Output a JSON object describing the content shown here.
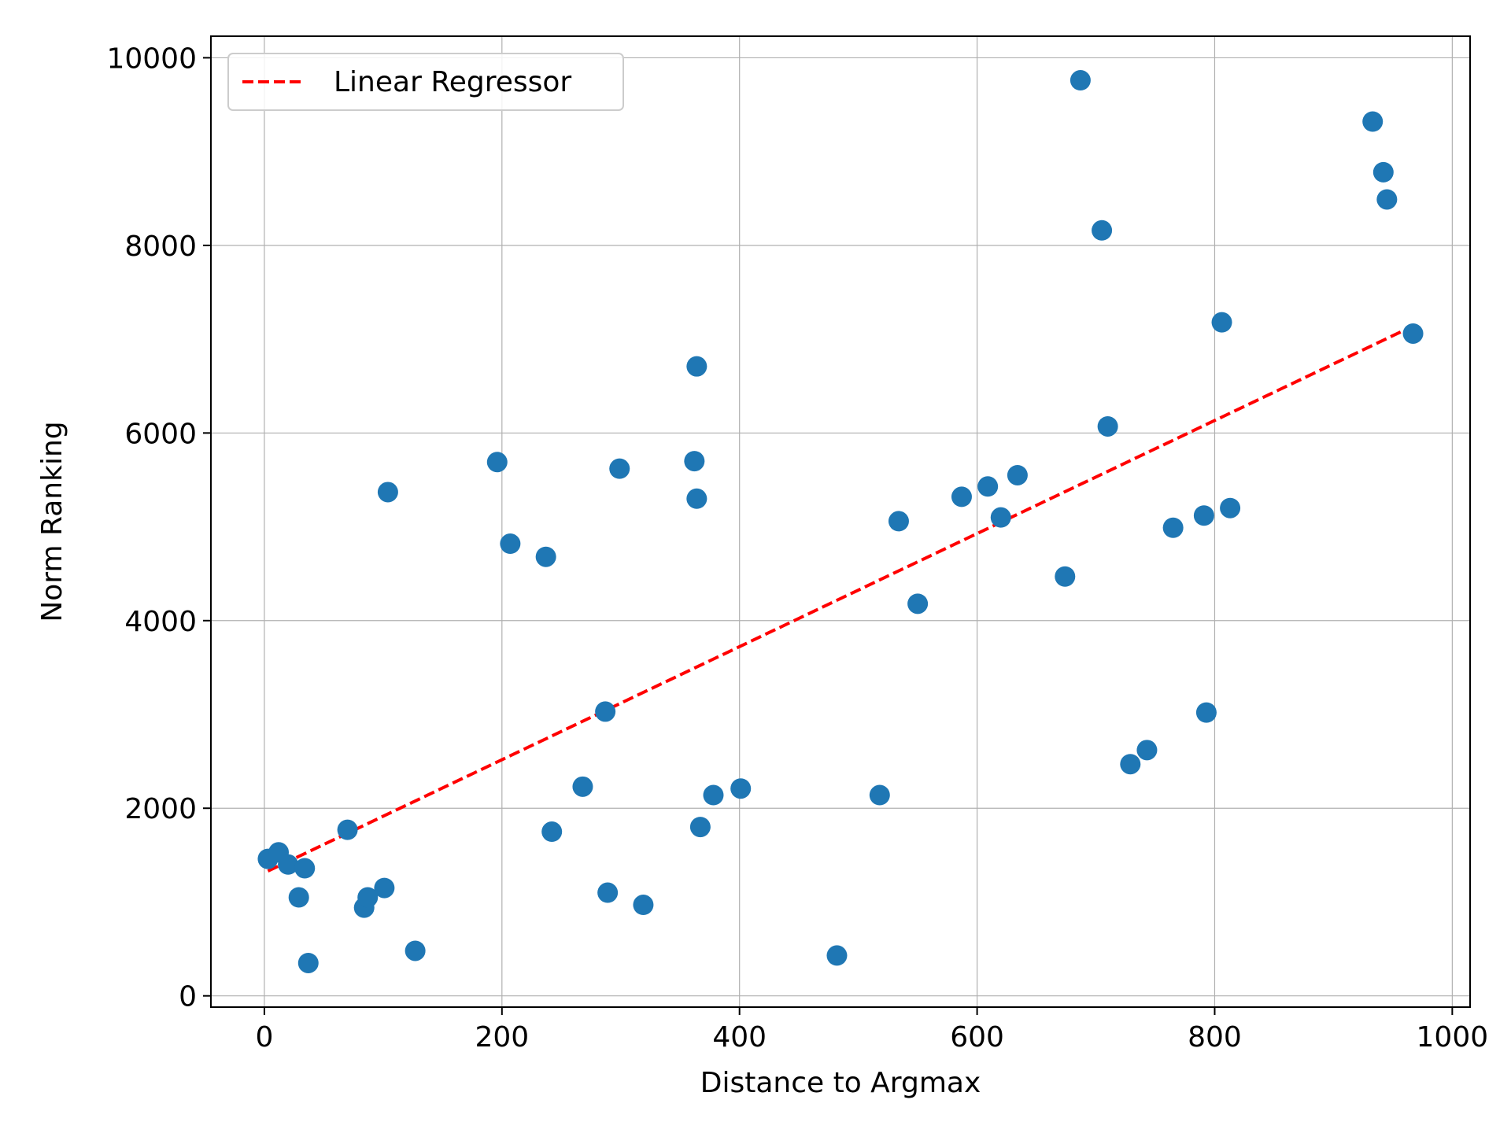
{
  "chart_data": {
    "type": "scatter",
    "title": "",
    "xlabel": "Distance to Argmax",
    "ylabel": "Norm Ranking",
    "xlim": [
      -45,
      1015
    ],
    "ylim": [
      -120,
      10230
    ],
    "xticks": [
      0,
      200,
      400,
      600,
      800,
      1000
    ],
    "yticks": [
      0,
      2000,
      4000,
      6000,
      8000,
      10000
    ],
    "grid": true,
    "legend": {
      "position": "top-left",
      "entries": [
        "Linear Regressor"
      ]
    },
    "colors": {
      "points": "#1f77b4",
      "regression": "#ff0000",
      "grid": "#b0b0b0"
    },
    "points": [
      [
        3,
        1460
      ],
      [
        12,
        1530
      ],
      [
        20,
        1400
      ],
      [
        29,
        1050
      ],
      [
        34,
        1360
      ],
      [
        37,
        350
      ],
      [
        70,
        1770
      ],
      [
        84,
        940
      ],
      [
        87,
        1050
      ],
      [
        101,
        1150
      ],
      [
        104,
        5370
      ],
      [
        127,
        480
      ],
      [
        196,
        5690
      ],
      [
        207,
        4820
      ],
      [
        237,
        4680
      ],
      [
        242,
        1750
      ],
      [
        268,
        2230
      ],
      [
        287,
        3030
      ],
      [
        289,
        1100
      ],
      [
        299,
        5620
      ],
      [
        319,
        970
      ],
      [
        362,
        5700
      ],
      [
        364,
        6710
      ],
      [
        364,
        5300
      ],
      [
        367,
        1800
      ],
      [
        378,
        2140
      ],
      [
        401,
        2210
      ],
      [
        482,
        430
      ],
      [
        518,
        2140
      ],
      [
        534,
        5060
      ],
      [
        550,
        4180
      ],
      [
        587,
        5320
      ],
      [
        609,
        5430
      ],
      [
        620,
        5100
      ],
      [
        634,
        5550
      ],
      [
        674,
        4470
      ],
      [
        687,
        9760
      ],
      [
        705,
        8160
      ],
      [
        710,
        6070
      ],
      [
        729,
        2470
      ],
      [
        743,
        2620
      ],
      [
        765,
        4990
      ],
      [
        791,
        5120
      ],
      [
        793,
        3020
      ],
      [
        806,
        7180
      ],
      [
        813,
        5200
      ],
      [
        933,
        9320
      ],
      [
        942,
        8780
      ],
      [
        945,
        8490
      ],
      [
        967,
        7060
      ]
    ],
    "series": [
      {
        "name": "Linear Regressor",
        "type": "line",
        "x": [
          3,
          967
        ],
        "y": [
          1330,
          7140
        ]
      }
    ]
  }
}
